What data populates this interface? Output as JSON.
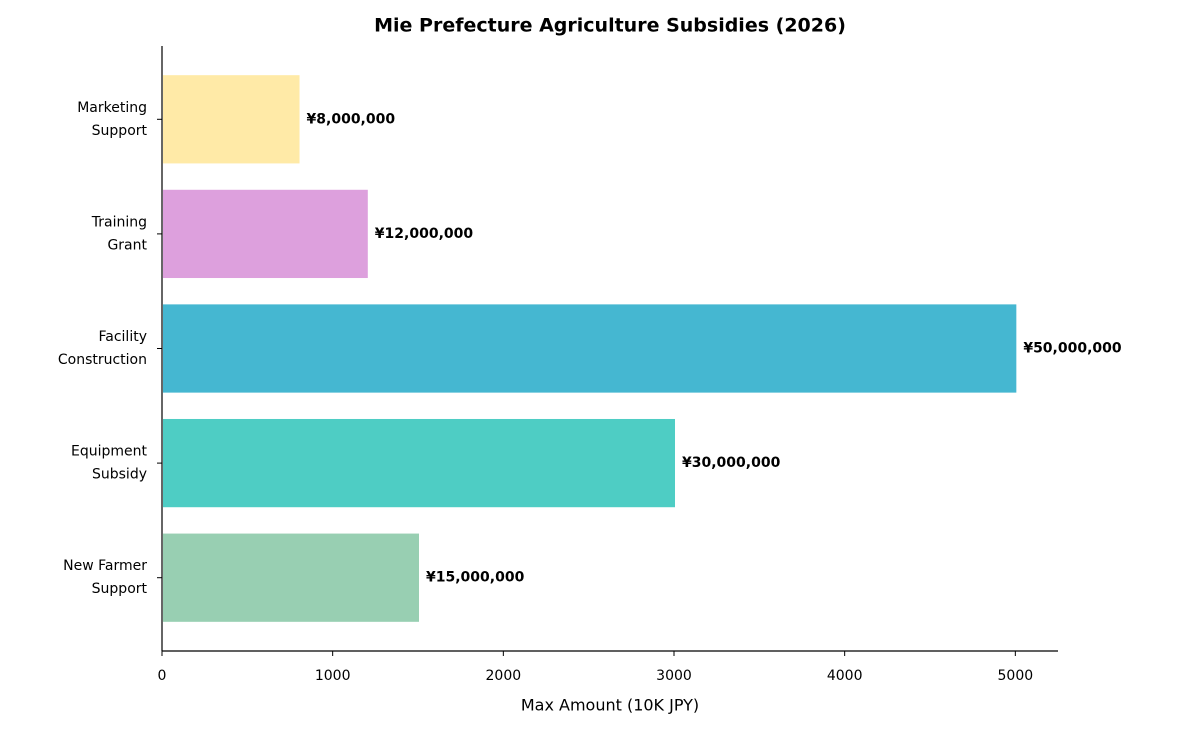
{
  "chart_data": {
    "type": "barh",
    "title": "Mie Prefecture Agriculture Subsidies (2026)",
    "x_label": "Max Amount (10K JPY)",
    "categories": [
      "New Farmer\nSupport",
      "Equipment\nSubsidy",
      "Facility\nConstruction",
      "Training\nGrant",
      "Marketing\nSupport"
    ],
    "values": [
      1500,
      3000,
      5000,
      1200,
      800
    ],
    "value_labels": [
      "¥15,000,000",
      "¥30,000,000",
      "¥50,000,000",
      "¥12,000,000",
      "¥8,000,000"
    ],
    "colors": [
      "#98cfb2",
      "#4ecdc4",
      "#45b7d1",
      "#dda0dd",
      "#ffeaa7"
    ],
    "xlim": [
      0,
      5250
    ],
    "xticks": [
      0,
      1000,
      2000,
      3000,
      4000,
      5000
    ],
    "grid": false
  }
}
